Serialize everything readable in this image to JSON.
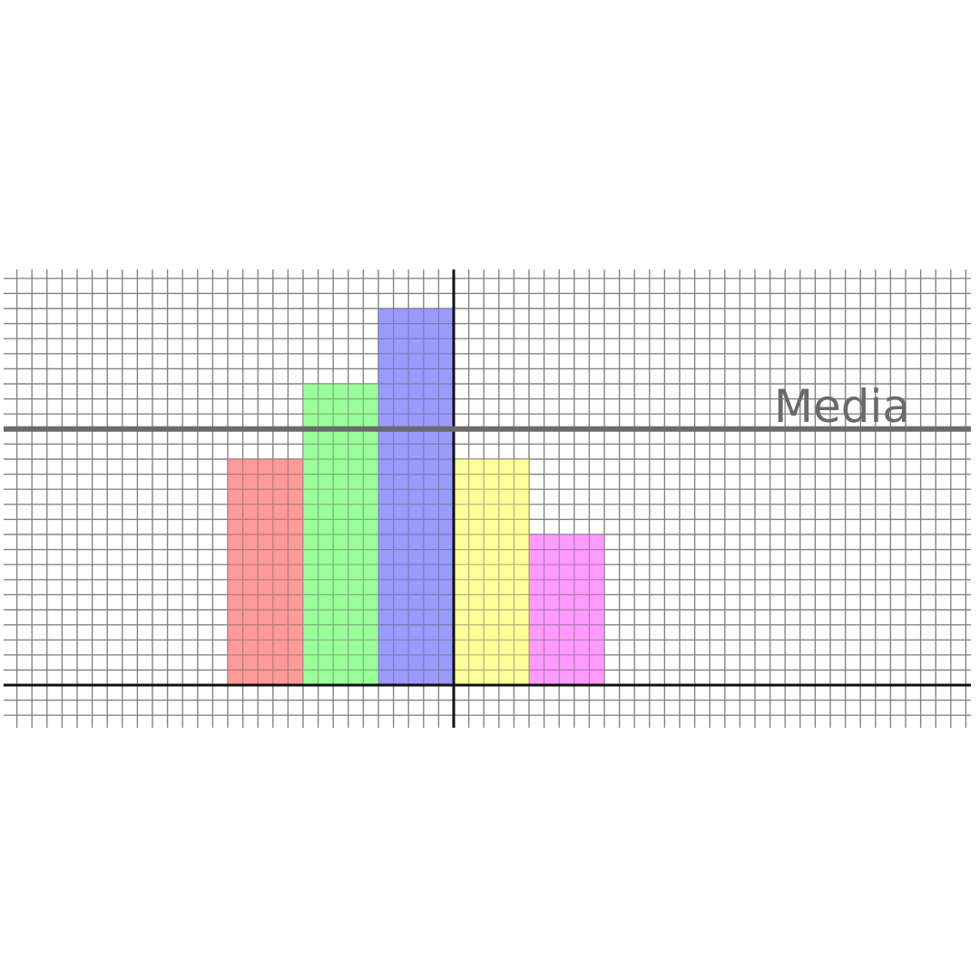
{
  "chart_data": {
    "type": "bar",
    "title": "",
    "xlabel": "",
    "ylabel": "",
    "grid": true,
    "xlim": [
      -30,
      35
    ],
    "ylim": [
      -3,
      28
    ],
    "bar_width": 5,
    "bars": [
      {
        "x_start": -15,
        "value": 15,
        "color": "#ff9a9a"
      },
      {
        "x_start": -10,
        "value": 20,
        "color": "#9aff9a"
      },
      {
        "x_start": -5,
        "value": 25,
        "color": "#9a9aff"
      },
      {
        "x_start": 0,
        "value": 15,
        "color": "#ffff9a"
      },
      {
        "x_start": 5,
        "value": 10,
        "color": "#ff9aff"
      }
    ],
    "average": {
      "value": 17,
      "label": "Media",
      "color": "#6a6a6a"
    }
  }
}
